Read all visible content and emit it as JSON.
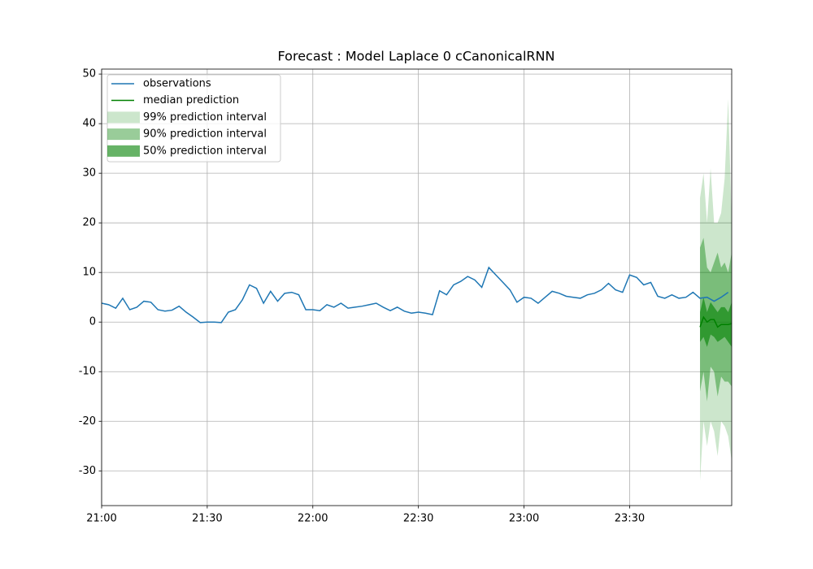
{
  "chart_data": {
    "type": "forecast",
    "title": "Forecast : Model Laplace 0 cCanonicalRNN",
    "xlim": [
      "21:00",
      "23:59"
    ],
    "xticks": [
      "21:00",
      "21:30",
      "22:00",
      "22:30",
      "23:00",
      "23:30"
    ],
    "ylim": [
      -37,
      51
    ],
    "yticks": [
      -30,
      -20,
      -10,
      0,
      10,
      20,
      30,
      40,
      50
    ],
    "grid": true,
    "legend": "upper left",
    "series": [
      {
        "name": "observations",
        "color": "#1f77b4",
        "x": [
          "21:00",
          "21:02",
          "21:04",
          "21:06",
          "21:08",
          "21:10",
          "21:12",
          "21:14",
          "21:16",
          "21:18",
          "21:20",
          "21:22",
          "21:24",
          "21:26",
          "21:28",
          "21:30",
          "21:32",
          "21:34",
          "21:36",
          "21:38",
          "21:40",
          "21:42",
          "21:44",
          "21:46",
          "21:48",
          "21:50",
          "21:52",
          "21:54",
          "21:56",
          "21:58",
          "22:00",
          "22:02",
          "22:04",
          "22:06",
          "22:08",
          "22:10",
          "22:12",
          "22:14",
          "22:16",
          "22:18",
          "22:20",
          "22:22",
          "22:24",
          "22:26",
          "22:28",
          "22:30",
          "22:32",
          "22:34",
          "22:36",
          "22:38",
          "22:40",
          "22:42",
          "22:44",
          "22:46",
          "22:48",
          "22:50",
          "22:52",
          "22:54",
          "22:56",
          "22:58",
          "23:00",
          "23:02",
          "23:04",
          "23:06",
          "23:08",
          "23:10",
          "23:12",
          "23:14",
          "23:16",
          "23:18",
          "23:20",
          "23:22",
          "23:24",
          "23:26",
          "23:28",
          "23:30",
          "23:32",
          "23:34",
          "23:36",
          "23:38",
          "23:40",
          "23:42",
          "23:44",
          "23:46",
          "23:48",
          "23:50",
          "23:52",
          "23:54",
          "23:56",
          "23:58"
        ],
        "values": [
          3.8,
          3.5,
          2.8,
          4.8,
          2.5,
          3.0,
          4.2,
          4.0,
          2.5,
          2.2,
          2.4,
          3.2,
          2.0,
          1.0,
          -0.1,
          0.0,
          0.0,
          -0.1,
          2.0,
          2.5,
          4.5,
          7.5,
          6.8,
          3.8,
          6.2,
          4.2,
          5.8,
          6.0,
          5.5,
          2.5,
          2.5,
          2.3,
          3.5,
          3.0,
          3.8,
          2.8,
          3.0,
          3.2,
          3.5,
          3.8,
          3.0,
          2.3,
          3.0,
          2.2,
          1.8,
          2.0,
          1.8,
          1.5,
          6.3,
          5.5,
          7.5,
          8.2,
          9.2,
          8.5,
          7.0,
          11.0,
          9.5,
          8.0,
          6.5,
          4.0,
          5.0,
          4.8,
          3.8,
          5.0,
          6.2,
          5.8,
          5.2,
          5.0,
          4.8,
          5.5,
          5.8,
          6.5,
          7.8,
          6.5,
          6.0,
          9.5,
          9.0,
          7.5,
          8.0,
          5.2,
          4.8,
          5.5,
          4.8,
          5.0,
          6.0,
          4.8,
          5.0,
          4.2,
          5.0,
          6.0
        ]
      },
      {
        "name": "median prediction",
        "color": "#008000",
        "x": [
          "23:50",
          "23:51",
          "23:52",
          "23:53",
          "23:54",
          "23:55",
          "23:56",
          "23:57",
          "23:58",
          "23:59"
        ],
        "values": [
          -1,
          1,
          0,
          0.5,
          0.5,
          -1,
          -0.5,
          -0.5,
          -0.5,
          -0.3
        ]
      }
    ],
    "intervals": [
      {
        "name": "99% prediction interval",
        "color": "#008000",
        "alpha": 0.2,
        "lower": [
          -32,
          -20,
          -25,
          -20,
          -22,
          -27,
          -20,
          -21,
          -23,
          -28
        ],
        "upper": [
          25,
          30,
          20,
          31,
          20,
          20,
          22,
          29,
          45,
          20
        ]
      },
      {
        "name": "90% prediction interval",
        "color": "#008000",
        "alpha": 0.4,
        "lower": [
          -14,
          -10,
          -16,
          -9,
          -10,
          -15,
          -11,
          -12,
          -12,
          -13
        ],
        "upper": [
          15,
          17,
          11,
          10,
          12,
          14,
          11,
          12,
          10,
          14
        ]
      },
      {
        "name": "50% prediction interval",
        "color": "#008000",
        "alpha": 0.6,
        "lower": [
          -4,
          -3,
          -5,
          -2.5,
          -3,
          -4,
          -3.5,
          -3,
          -4,
          -5
        ],
        "upper": [
          2,
          5,
          2,
          4,
          3,
          2,
          3,
          3,
          2,
          4
        ]
      }
    ]
  }
}
